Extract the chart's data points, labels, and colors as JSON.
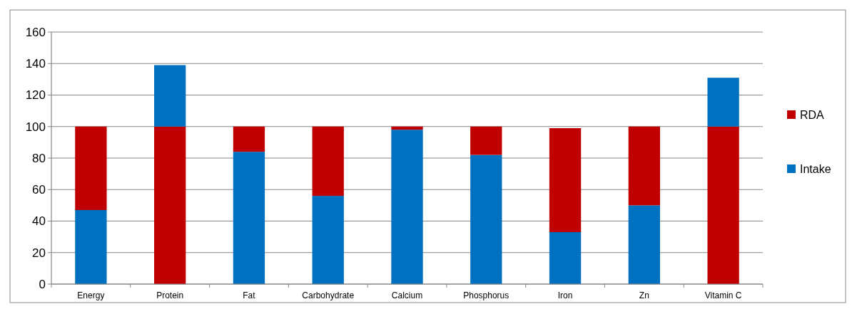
{
  "chart_data": {
    "type": "bar",
    "stacked": true,
    "categories": [
      "Energy",
      "Protein",
      "Fat",
      "Carbohydrate",
      "Calcium",
      "Phosphorus",
      "Iron",
      "Zn",
      "Vitamin C"
    ],
    "series": [
      {
        "name": "Intake",
        "color": "#0070c0",
        "values": [
          47,
          null,
          84,
          56,
          98,
          82,
          33,
          50,
          null
        ]
      },
      {
        "name": "RDA",
        "color": "#c00000",
        "values": [
          53,
          100,
          16,
          44,
          2,
          18,
          66,
          50,
          100
        ]
      },
      {
        "color": "#0070c0",
        "values": [
          null,
          39,
          null,
          null,
          null,
          null,
          null,
          null,
          31
        ]
      }
    ],
    "ylim": [
      0,
      160
    ],
    "yticks": [
      0,
      20,
      40,
      60,
      80,
      100,
      120,
      140,
      160
    ],
    "grid": "y",
    "legend": "right"
  }
}
